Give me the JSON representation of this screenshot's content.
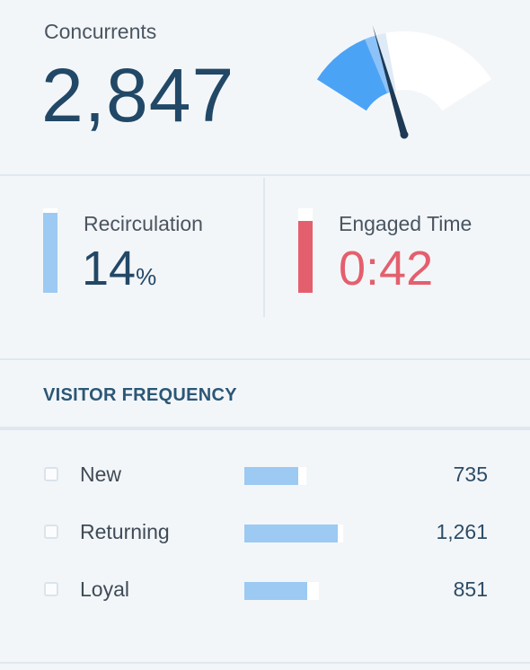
{
  "concurrents": {
    "label": "Concurrents",
    "value": "2,847",
    "gauge": {
      "level": 0.34,
      "max_level": 0.41,
      "active_color": "#4ba3f5",
      "track_color": "#ffffff",
      "needle_color": "#1c3a55"
    }
  },
  "metrics": {
    "recirculation": {
      "label": "Recirculation",
      "value": "14",
      "unit": "%",
      "bar_color": "#9ccaf2",
      "level": 0.95,
      "text_color": "#234866"
    },
    "engaged_time": {
      "label": "Engaged Time",
      "value": "0:42",
      "bar_color": "#e45f6d",
      "level": 0.85,
      "text_color": "#e45f6d"
    }
  },
  "visitor_frequency": {
    "title": "VISITOR FREQUENCY",
    "rows": [
      {
        "label": "New",
        "count": "735",
        "level": 0.58,
        "max": 0.66
      },
      {
        "label": "Returning",
        "count": "1,261",
        "level": 1.0,
        "max": 1.06
      },
      {
        "label": "Loyal",
        "count": "851",
        "level": 0.67,
        "max": 0.8
      }
    ]
  }
}
